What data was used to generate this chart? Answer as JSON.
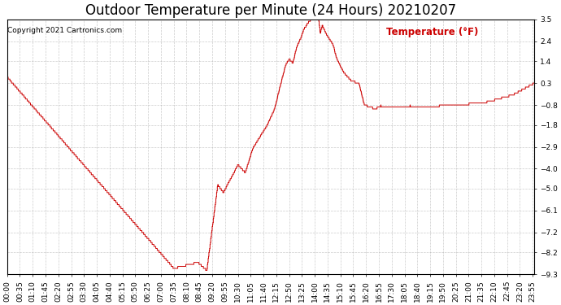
{
  "title": "Outdoor Temperature per Minute (24 Hours) 20210207",
  "copyright_text": "Copyright 2021 Cartronics.com",
  "legend_label": "Temperature (°F)",
  "line_color": "#cc0000",
  "background_color": "#ffffff",
  "grid_color": "#aaaaaa",
  "yticks": [
    3.5,
    2.4,
    1.4,
    0.3,
    -0.8,
    -1.8,
    -2.9,
    -4.0,
    -5.0,
    -6.1,
    -7.2,
    -8.2,
    -9.3
  ],
  "ymin": -9.3,
  "ymax": 3.5,
  "total_minutes": 1440,
  "title_fontsize": 12,
  "tick_fontsize": 6.5,
  "copyright_fontsize": 6.5,
  "legend_fontsize": 8.5,
  "profile_points": [
    [
      0,
      0.6
    ],
    [
      455,
      -9.0
    ],
    [
      520,
      -8.7
    ],
    [
      545,
      -9.1
    ],
    [
      575,
      -4.8
    ],
    [
      590,
      -5.2
    ],
    [
      610,
      -4.5
    ],
    [
      630,
      -3.8
    ],
    [
      650,
      -4.2
    ],
    [
      670,
      -3.0
    ],
    [
      690,
      -2.4
    ],
    [
      710,
      -1.8
    ],
    [
      730,
      -1.0
    ],
    [
      750,
      0.5
    ],
    [
      760,
      1.2
    ],
    [
      770,
      1.5
    ],
    [
      780,
      1.3
    ],
    [
      790,
      2.1
    ],
    [
      800,
      2.5
    ],
    [
      810,
      3.0
    ],
    [
      820,
      3.3
    ],
    [
      830,
      3.5
    ],
    [
      840,
      3.6
    ],
    [
      850,
      3.5
    ],
    [
      855,
      2.8
    ],
    [
      860,
      3.2
    ],
    [
      870,
      2.8
    ],
    [
      880,
      2.5
    ],
    [
      890,
      2.2
    ],
    [
      900,
      1.5
    ],
    [
      920,
      0.8
    ],
    [
      940,
      0.4
    ],
    [
      960,
      0.3
    ],
    [
      975,
      -0.8
    ],
    [
      990,
      -0.9
    ],
    [
      1005,
      -1.0
    ],
    [
      1020,
      -0.85
    ],
    [
      1060,
      -0.9
    ],
    [
      1100,
      -0.85
    ],
    [
      1140,
      -0.9
    ],
    [
      1180,
      -0.85
    ],
    [
      1220,
      -0.8
    ],
    [
      1260,
      -0.75
    ],
    [
      1300,
      -0.7
    ],
    [
      1340,
      -0.5
    ],
    [
      1380,
      -0.3
    ],
    [
      1420,
      0.1
    ],
    [
      1439,
      0.3
    ]
  ]
}
